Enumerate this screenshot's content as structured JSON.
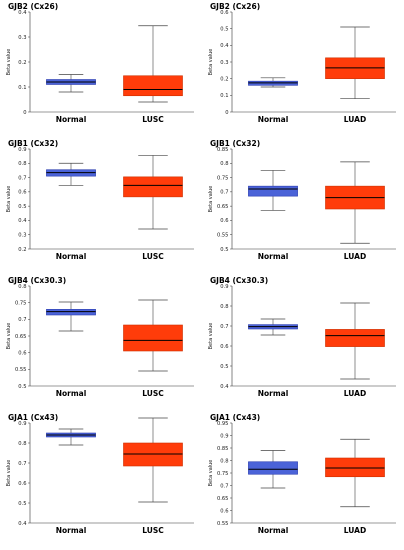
{
  "figure": {
    "colors": {
      "normal_fill": "#4b63d8",
      "normal_stroke": "#2b3db0",
      "tumor_fill": "#ff3c0a",
      "tumor_stroke": "#cc3000",
      "median": "#000000",
      "axis": "#333333"
    }
  },
  "chart_data": [
    {
      "type": "box",
      "title": "GJB2 (Cx26)",
      "ylabel": "Beta value",
      "ylim": [
        0,
        0.4
      ],
      "yticks": [
        "0",
        "0.1",
        "0.2",
        "0.3",
        "0.4"
      ],
      "categories": [
        "Normal",
        "LUSC"
      ],
      "boxes": [
        {
          "name": "Normal",
          "min": 0.08,
          "q1": 0.11,
          "median": 0.12,
          "q3": 0.13,
          "max": 0.15
        },
        {
          "name": "LUSC",
          "min": 0.04,
          "q1": 0.065,
          "median": 0.09,
          "q3": 0.145,
          "max": 0.345
        }
      ]
    },
    {
      "type": "box",
      "title": "GJB2 (Cx26)",
      "ylabel": "Beta value",
      "ylim": [
        0,
        0.6
      ],
      "yticks": [
        "0",
        "0.1",
        "0.2",
        "0.3",
        "0.4",
        "0.5",
        "0.6"
      ],
      "categories": [
        "Normal",
        "LUAD"
      ],
      "boxes": [
        {
          "name": "Normal",
          "min": 0.15,
          "q1": 0.16,
          "median": 0.175,
          "q3": 0.185,
          "max": 0.205
        },
        {
          "name": "LUAD",
          "min": 0.08,
          "q1": 0.2,
          "median": 0.265,
          "q3": 0.325,
          "max": 0.51
        }
      ]
    },
    {
      "type": "box",
      "title": "GJB1 (Cx32)",
      "ylabel": "Beta value",
      "ylim": [
        0.2,
        0.9
      ],
      "yticks": [
        "0.2",
        "0.3",
        "0.4",
        "0.5",
        "0.6",
        "0.7",
        "0.8",
        "0.9"
      ],
      "categories": [
        "Normal",
        "LUSC"
      ],
      "boxes": [
        {
          "name": "Normal",
          "min": 0.645,
          "q1": 0.71,
          "median": 0.735,
          "q3": 0.755,
          "max": 0.8
        },
        {
          "name": "LUSC",
          "min": 0.34,
          "q1": 0.565,
          "median": 0.645,
          "q3": 0.705,
          "max": 0.855
        }
      ]
    },
    {
      "type": "box",
      "title": "GJB1 (Cx32)",
      "ylabel": "Beta value",
      "ylim": [
        0.5,
        0.85
      ],
      "yticks": [
        "0.5",
        "0.55",
        "0.6",
        "0.65",
        "0.7",
        "0.75",
        "0.8",
        "0.85"
      ],
      "categories": [
        "Normal",
        "LUAD"
      ],
      "boxes": [
        {
          "name": "Normal",
          "min": 0.635,
          "q1": 0.685,
          "median": 0.71,
          "q3": 0.72,
          "max": 0.775
        },
        {
          "name": "LUAD",
          "min": 0.52,
          "q1": 0.64,
          "median": 0.68,
          "q3": 0.72,
          "max": 0.805
        }
      ]
    },
    {
      "type": "box",
      "title": "GJB4 (Cx30.3)",
      "ylabel": "Beta value",
      "ylim": [
        0.5,
        0.8
      ],
      "yticks": [
        "0.5",
        "0.55",
        "0.6",
        "0.65",
        "0.7",
        "0.75",
        "0.8"
      ],
      "categories": [
        "Normal",
        "LUSC"
      ],
      "boxes": [
        {
          "name": "Normal",
          "min": 0.665,
          "q1": 0.713,
          "median": 0.723,
          "q3": 0.73,
          "max": 0.752
        },
        {
          "name": "LUSC",
          "min": 0.545,
          "q1": 0.605,
          "median": 0.637,
          "q3": 0.683,
          "max": 0.758
        }
      ]
    },
    {
      "type": "box",
      "title": "GJB4 (Cx30.3)",
      "ylabel": "Beta value",
      "ylim": [
        0.4,
        0.9
      ],
      "yticks": [
        "0.4",
        "0.5",
        "0.6",
        "0.7",
        "0.8",
        "0.9"
      ],
      "categories": [
        "Normal",
        "LUAD"
      ],
      "boxes": [
        {
          "name": "Normal",
          "min": 0.655,
          "q1": 0.685,
          "median": 0.697,
          "q3": 0.707,
          "max": 0.735
        },
        {
          "name": "LUAD",
          "min": 0.435,
          "q1": 0.597,
          "median": 0.652,
          "q3": 0.683,
          "max": 0.815
        }
      ]
    },
    {
      "type": "box",
      "title": "GJA1 (Cx43)",
      "ylabel": "Beta value",
      "ylim": [
        0.4,
        0.9
      ],
      "yticks": [
        "0.4",
        "0.5",
        "0.6",
        "0.7",
        "0.8",
        "0.9"
      ],
      "categories": [
        "Normal",
        "LUSC"
      ],
      "boxes": [
        {
          "name": "Normal",
          "min": 0.79,
          "q1": 0.83,
          "median": 0.84,
          "q3": 0.85,
          "max": 0.87
        },
        {
          "name": "LUSC",
          "min": 0.505,
          "q1": 0.685,
          "median": 0.745,
          "q3": 0.8,
          "max": 0.925
        }
      ]
    },
    {
      "type": "box",
      "title": "GJA1 (Cx43)",
      "ylabel": "Beta value",
      "ylim": [
        0.55,
        0.95
      ],
      "yticks": [
        "0.55",
        "0.6",
        "0.65",
        "0.7",
        "0.75",
        "0.8",
        "0.85",
        "0.9",
        "0.95"
      ],
      "categories": [
        "Normal",
        "LUAD"
      ],
      "boxes": [
        {
          "name": "Normal",
          "min": 0.69,
          "q1": 0.745,
          "median": 0.765,
          "q3": 0.795,
          "max": 0.84
        },
        {
          "name": "LUAD",
          "min": 0.615,
          "q1": 0.735,
          "median": 0.77,
          "q3": 0.81,
          "max": 0.885
        }
      ]
    }
  ]
}
